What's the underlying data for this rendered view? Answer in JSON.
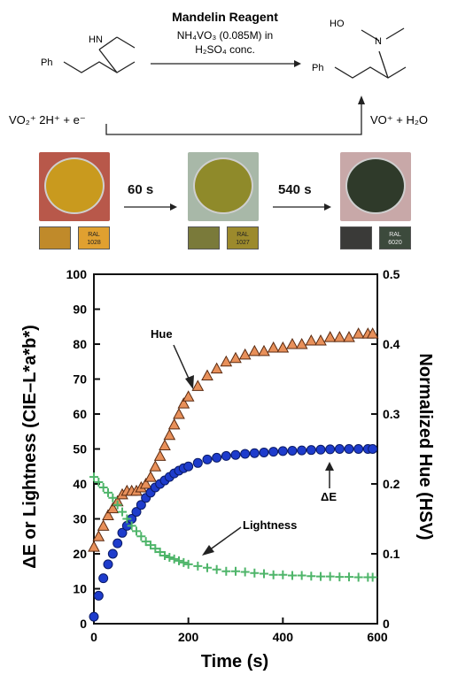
{
  "scheme": {
    "title": "Mandelin Reagent",
    "reagent_line1": "NH₄VO₃ (0.085M) in",
    "reagent_line2": "H₂SO₄ conc.",
    "left_amine": "HN",
    "left_ph": "Ph",
    "right_ho": "HO",
    "right_n": "N",
    "right_ph": "Ph",
    "half_left": "VO₂⁺ 2H⁺ + e⁻",
    "half_right": "VO⁺ + H₂O"
  },
  "photos": {
    "step1": "60 s",
    "step2": "540 s",
    "ral1": "RAL\n1028",
    "ral2": "RAL\n1027",
    "ral3": "RAL\n6020",
    "colors": {
      "dish1": "#c99a1e",
      "dish2": "#8f8a2a",
      "dish3": "#2f3a2a",
      "swatch1a": "#c08a2a",
      "swatch1b": "#e0a030",
      "swatch2a": "#7a7a3a",
      "swatch2b": "#9c8a2c",
      "swatch3a": "#3a3a38",
      "swatch3b": "#3c4a3c",
      "bg1": "#b8584a",
      "bg2": "#a8b8a8",
      "bg3": "#c8a8a8"
    }
  },
  "chart_data": {
    "type": "scatter",
    "xlabel": "Time (s)",
    "ylabel_left": "ΔE or Lightness (CIE–L*a*b*)",
    "ylabel_right": "Normalized Hue (HSV)",
    "xlim": [
      0,
      600
    ],
    "ylim_left": [
      0,
      100
    ],
    "ylim_right": [
      0,
      0.5
    ],
    "x_ticks": [
      0,
      200,
      400,
      600
    ],
    "y_ticks_left": [
      0,
      10,
      20,
      30,
      40,
      50,
      60,
      70,
      80,
      90,
      100
    ],
    "y_ticks_right": [
      0,
      0.1,
      0.2,
      0.3,
      0.4,
      0.5
    ],
    "y_tick_labels_right": [
      "0",
      "0.1",
      "0.2",
      "0.3",
      "0.4",
      "0.5"
    ],
    "annotations": {
      "hue": "Hue",
      "lightness": "Lightness",
      "delta_e": "ΔE"
    },
    "series": [
      {
        "name": "Hue",
        "axis": "right",
        "marker": "triangle",
        "color": "#e8905a",
        "x": [
          0,
          10,
          20,
          30,
          40,
          50,
          60,
          70,
          80,
          90,
          100,
          110,
          120,
          130,
          140,
          150,
          160,
          170,
          180,
          190,
          200,
          220,
          240,
          260,
          280,
          300,
          320,
          340,
          360,
          380,
          400,
          420,
          440,
          460,
          480,
          500,
          520,
          540,
          560,
          580,
          590
        ],
        "y": [
          0.11,
          0.125,
          0.14,
          0.155,
          0.165,
          0.175,
          0.185,
          0.19,
          0.19,
          0.19,
          0.195,
          0.2,
          0.21,
          0.225,
          0.24,
          0.255,
          0.27,
          0.285,
          0.3,
          0.315,
          0.325,
          0.34,
          0.355,
          0.365,
          0.375,
          0.38,
          0.385,
          0.39,
          0.39,
          0.395,
          0.395,
          0.4,
          0.4,
          0.405,
          0.405,
          0.41,
          0.41,
          0.41,
          0.415,
          0.415,
          0.415
        ]
      },
      {
        "name": "ΔE",
        "axis": "left",
        "marker": "circle",
        "color": "#1e3ccc",
        "x": [
          0,
          10,
          20,
          30,
          40,
          50,
          60,
          70,
          80,
          90,
          100,
          110,
          120,
          130,
          140,
          150,
          160,
          170,
          180,
          190,
          200,
          220,
          240,
          260,
          280,
          300,
          320,
          340,
          360,
          380,
          400,
          420,
          440,
          460,
          480,
          500,
          520,
          540,
          560,
          580,
          590
        ],
        "y": [
          2,
          8,
          13,
          17,
          20,
          23,
          26,
          28,
          30,
          32,
          34,
          36,
          37.5,
          39,
          40,
          41,
          42,
          43,
          43.8,
          44.5,
          45,
          46,
          47,
          47.5,
          48,
          48.3,
          48.6,
          48.8,
          49,
          49.2,
          49.4,
          49.5,
          49.6,
          49.7,
          49.8,
          49.9,
          50,
          50,
          50,
          50,
          50
        ]
      },
      {
        "name": "Lightness",
        "axis": "left",
        "marker": "plus",
        "color": "#4fb56a",
        "x": [
          0,
          10,
          20,
          30,
          40,
          50,
          60,
          70,
          80,
          90,
          100,
          110,
          120,
          130,
          140,
          150,
          160,
          170,
          180,
          190,
          200,
          220,
          240,
          260,
          280,
          300,
          320,
          340,
          360,
          380,
          400,
          420,
          440,
          460,
          480,
          500,
          520,
          540,
          560,
          580,
          590
        ],
        "y": [
          42,
          40.5,
          39,
          37.5,
          36,
          34,
          32,
          30,
          28,
          26.5,
          25,
          23.5,
          22.5,
          21.5,
          20.5,
          19.5,
          19,
          18.5,
          18,
          17.5,
          17,
          16.5,
          16,
          15.5,
          15,
          15,
          14.8,
          14.5,
          14.3,
          14,
          14,
          13.8,
          13.8,
          13.6,
          13.5,
          13.5,
          13.4,
          13.4,
          13.3,
          13.3,
          13.3
        ]
      }
    ]
  }
}
